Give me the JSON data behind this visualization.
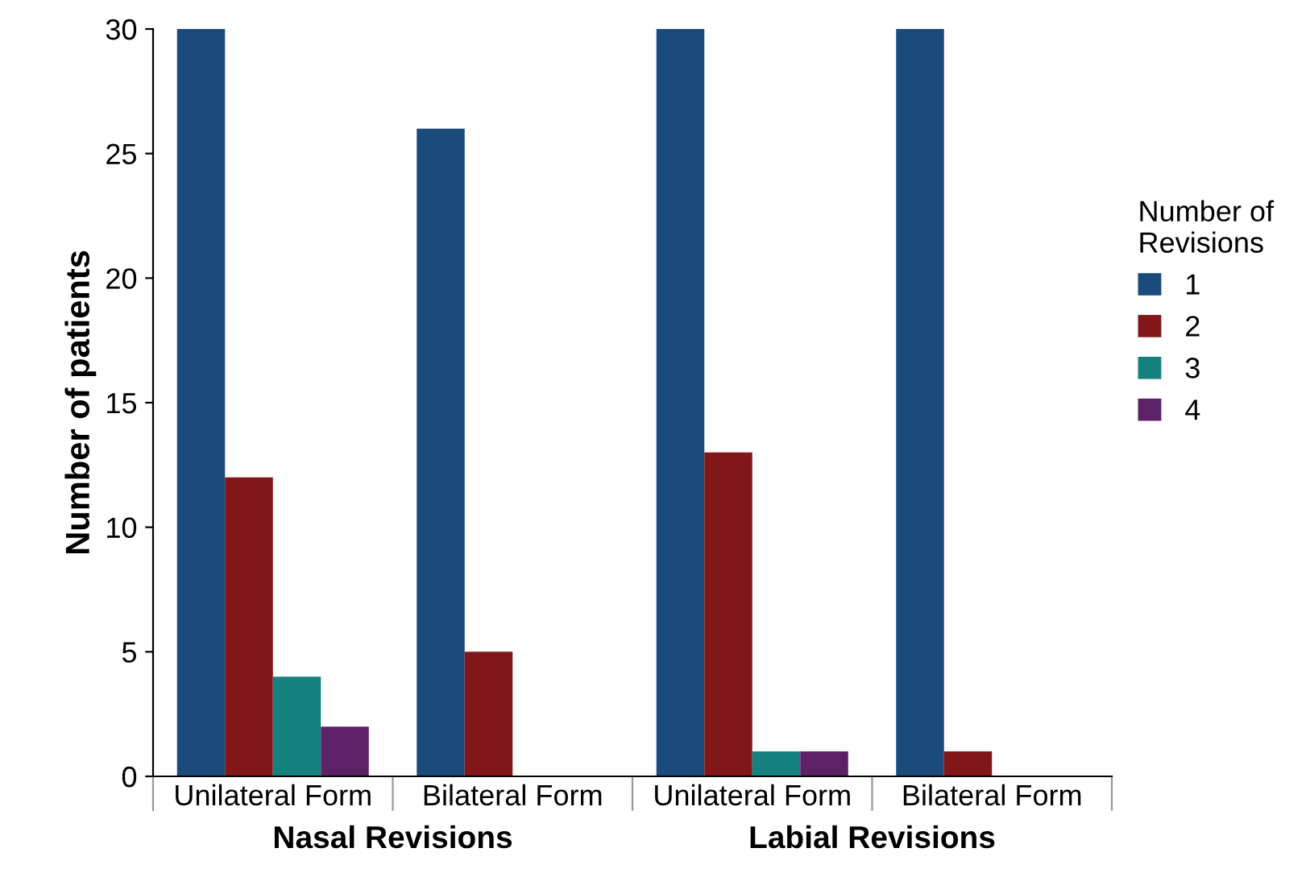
{
  "chart_data": {
    "type": "bar",
    "ylabel": "Number of patients",
    "legend_title": "Number of\nRevisions",
    "categories": [
      "Unilateral Form",
      "Bilateral Form",
      "Unilateral Form",
      "Bilateral Form"
    ],
    "series": [
      {
        "name": "1",
        "color": "#1b4a7c",
        "values": [
          30,
          26,
          30,
          30
        ]
      },
      {
        "name": "2",
        "color": "#82171a",
        "values": [
          12,
          5,
          13,
          1
        ]
      },
      {
        "name": "3",
        "color": "#15817f",
        "values": [
          4,
          0,
          1,
          0
        ]
      },
      {
        "name": "4",
        "color": "#5c2166",
        "values": [
          2,
          0,
          1,
          0
        ]
      }
    ],
    "annotations": [
      "Nasal Revisions",
      "Labial Revisions"
    ],
    "ylim": [
      0,
      30
    ],
    "yticks": [
      0,
      5,
      10,
      15,
      20,
      25,
      30
    ],
    "grid": false,
    "legend": "right"
  }
}
